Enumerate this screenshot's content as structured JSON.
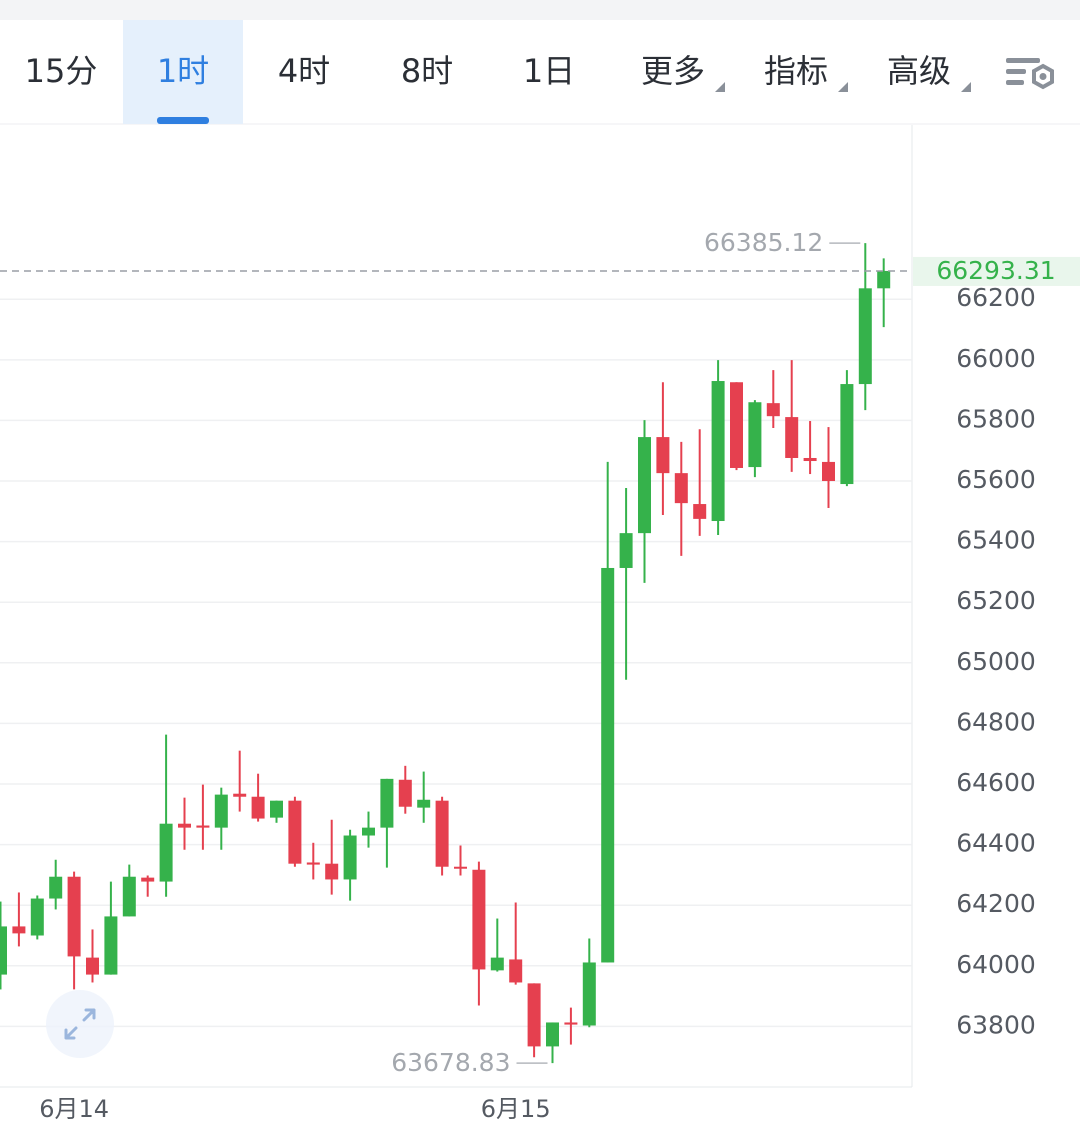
{
  "tabs": {
    "items": [
      "15分",
      "1时",
      "4时",
      "8时",
      "1日",
      "更多",
      "指标",
      "高级"
    ],
    "active": 1
  },
  "chart_data": {
    "type": "candlestick",
    "categories": [
      null,
      null,
      null,
      null,
      "6月14",
      null,
      null,
      null,
      null,
      null,
      null,
      null,
      null,
      null,
      null,
      null,
      null,
      null,
      null,
      null,
      null,
      null,
      null,
      null,
      null,
      null,
      null,
      null,
      "6月15",
      null,
      null,
      null,
      null,
      null,
      null,
      null,
      null,
      null,
      null,
      null,
      null,
      null,
      null,
      null,
      null,
      null,
      null,
      null,
      null
    ],
    "open": [
      63971,
      64130,
      64100,
      64222,
      64294,
      64027,
      63971,
      64163,
      64291,
      64278,
      64469,
      64463,
      64456,
      64568,
      64558,
      64489,
      64545,
      64341,
      64337,
      64285,
      64430,
      64456,
      64614,
      64522,
      64545,
      64327,
      64317,
      63985,
      64021,
      63942,
      63734,
      63813,
      63803,
      64011,
      65313,
      65428,
      65745,
      65626,
      65524,
      65468,
      65926,
      65646,
      65857,
      65811,
      65676,
      65663,
      65590,
      65920,
      66236
    ],
    "high": [
      64212,
      64242,
      64232,
      64350,
      64311,
      64120,
      64278,
      64334,
      64298,
      64763,
      64555,
      64598,
      64588,
      64710,
      64634,
      64545,
      64558,
      64406,
      64482,
      64449,
      64509,
      64617,
      64660,
      64641,
      64558,
      64397,
      64344,
      64156,
      64209,
      63942,
      63813,
      63862,
      64090,
      65663,
      65577,
      65801,
      65926,
      65729,
      65771,
      65999,
      65926,
      65867,
      65966,
      65999,
      65798,
      65778,
      65966,
      66385.12,
      66335
    ],
    "low": [
      63922,
      64064,
      64087,
      64186,
      63922,
      63945,
      63971,
      64163,
      64228,
      64228,
      64383,
      64383,
      64383,
      64509,
      64476,
      64472,
      64327,
      64285,
      64235,
      64215,
      64390,
      64324,
      64502,
      64472,
      64298,
      64298,
      63869,
      63981,
      63938,
      63698,
      63678.83,
      63740,
      63797,
      64011,
      64944,
      65264,
      65488,
      65353,
      65419,
      65422,
      65636,
      65613,
      65775,
      65630,
      65623,
      65511,
      65583,
      65834,
      66108
    ],
    "close": [
      64130,
      64107,
      64222,
      64294,
      64031,
      63971,
      64163,
      64294,
      64278,
      64469,
      64456,
      64456,
      64565,
      64558,
      64486,
      64545,
      64337,
      64334,
      64285,
      64430,
      64456,
      64617,
      64525,
      64548,
      64327,
      64321,
      63988,
      64027,
      63945,
      63734,
      63813,
      63806,
      64011,
      65313,
      65428,
      65745,
      65626,
      65527,
      65475,
      65930,
      65643,
      65860,
      65814,
      65676,
      65666,
      65600,
      65920,
      66236,
      66293.31
    ],
    "up_color": "#35b24b",
    "down_color": "#e5404f",
    "ylim": [
      63600,
      66775
    ],
    "yticks": [
      63800,
      64000,
      64200,
      64400,
      64600,
      64800,
      65000,
      65200,
      65400,
      65600,
      65800,
      66000,
      66200
    ],
    "grid": true,
    "high_mark": 66385.12,
    "low_mark": 63678.83,
    "last_price": 66293.31
  }
}
